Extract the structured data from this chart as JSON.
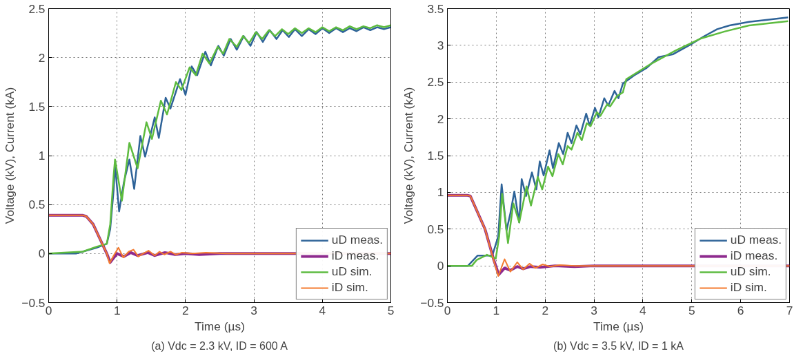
{
  "chart_data": [
    {
      "type": "line",
      "xlabel": "Time (µs)",
      "ylabel": "Voltage (kV), Current (kA)",
      "annotations": [
        "(a) Vdc = 2.3 kV, ID = 600 A"
      ],
      "xlim": [
        0,
        5
      ],
      "ylim": [
        -0.5,
        2.5
      ],
      "xticks": [
        0,
        1,
        2,
        3,
        4,
        5
      ],
      "yticks": [
        {
          "value": -0.5,
          "label": "−0.5"
        },
        0,
        0.5,
        1,
        1.5,
        2,
        2.5
      ],
      "grid": true,
      "legend": "bottom right",
      "line_style": "solid",
      "series": [
        {
          "name": "uD meas.",
          "color": "#2e6398",
          "x": [
            0,
            0.4,
            0.5,
            0.7,
            0.85,
            0.9,
            0.95,
            0.97,
            1.03,
            1.1,
            1.18,
            1.25,
            1.34,
            1.41,
            1.55,
            1.61,
            1.71,
            1.78,
            1.92,
            2.0,
            2.09,
            2.17,
            2.29,
            2.37,
            2.48,
            2.56,
            2.66,
            2.75,
            2.85,
            2.95,
            3.04,
            3.13,
            3.23,
            3.33,
            3.42,
            3.51,
            3.6,
            3.7,
            3.8,
            3.9,
            4.0,
            4.1,
            4.2,
            4.3,
            4.4,
            4.5,
            4.6,
            4.7,
            4.8,
            4.9,
            5.0
          ],
          "values": [
            0,
            0,
            0.02,
            0.06,
            0.1,
            0.25,
            0.65,
            0.91,
            0.43,
            0.73,
            0.96,
            0.66,
            1.2,
            0.99,
            1.39,
            1.18,
            1.59,
            1.48,
            1.78,
            1.62,
            1.91,
            1.82,
            2.06,
            1.92,
            2.12,
            2.02,
            2.19,
            2.08,
            2.22,
            2.12,
            2.26,
            2.16,
            2.28,
            2.19,
            2.28,
            2.21,
            2.29,
            2.22,
            2.29,
            2.24,
            2.3,
            2.25,
            2.3,
            2.26,
            2.3,
            2.27,
            2.31,
            2.28,
            2.31,
            2.29,
            2.31
          ]
        },
        {
          "name": "iD meas.",
          "color": "#8e2a8e",
          "x": [
            0,
            0.5,
            0.55,
            0.65,
            0.75,
            0.85,
            0.9,
            1.0,
            1.1,
            1.2,
            1.3,
            1.45,
            1.55,
            1.7,
            1.85,
            2.0,
            2.2,
            2.5,
            3.0,
            3.5,
            5.0
          ],
          "values": [
            0.39,
            0.39,
            0.38,
            0.3,
            0.15,
            0.0,
            -0.09,
            0.0,
            -0.03,
            0.01,
            -0.02,
            0.01,
            -0.02,
            0.01,
            -0.01,
            0.0,
            -0.01,
            0.0,
            0.0,
            0.0,
            0.0
          ]
        },
        {
          "name": "uD sim.",
          "color": "#5dbb3f",
          "x": [
            0,
            0.5,
            0.7,
            0.85,
            0.9,
            0.95,
            0.97,
            1.07,
            1.18,
            1.3,
            1.43,
            1.51,
            1.64,
            1.73,
            1.86,
            1.94,
            2.06,
            2.15,
            2.25,
            2.35,
            2.47,
            2.55,
            2.64,
            2.75,
            2.84,
            2.93,
            3.03,
            3.12,
            3.22,
            3.31,
            3.41,
            3.5,
            3.6,
            3.7,
            3.8,
            3.9,
            4.0,
            4.1,
            4.2,
            4.3,
            4.4,
            4.5,
            4.6,
            4.7,
            4.8,
            4.9,
            5.0
          ],
          "values": [
            0,
            0.02,
            0.07,
            0.1,
            0.3,
            0.8,
            0.96,
            0.54,
            1.13,
            0.87,
            1.34,
            1.17,
            1.56,
            1.42,
            1.75,
            1.67,
            1.9,
            1.82,
            2.04,
            1.94,
            2.11,
            2.04,
            2.19,
            2.11,
            2.22,
            2.15,
            2.26,
            2.19,
            2.28,
            2.22,
            2.29,
            2.24,
            2.3,
            2.25,
            2.3,
            2.26,
            2.31,
            2.27,
            2.31,
            2.28,
            2.32,
            2.29,
            2.32,
            2.3,
            2.33,
            2.31,
            2.33
          ]
        },
        {
          "name": "iD sim.",
          "color": "#f47b2f",
          "x": [
            0,
            0.5,
            0.55,
            0.65,
            0.75,
            0.85,
            0.89,
            0.95,
            1.02,
            1.09,
            1.17,
            1.24,
            1.31,
            1.38,
            1.46,
            1.55,
            1.62,
            1.69,
            1.78,
            1.86,
            1.95,
            2.1,
            2.3,
            2.6,
            3.0,
            3.5,
            5.0
          ],
          "values": [
            0.39,
            0.39,
            0.38,
            0.3,
            0.15,
            0.0,
            -0.1,
            -0.02,
            0.06,
            -0.04,
            0.02,
            0.04,
            -0.03,
            0.0,
            0.03,
            -0.02,
            0.02,
            -0.01,
            0.02,
            -0.01,
            0.01,
            0.0,
            0.01,
            0.0,
            0.0,
            0.0,
            0.0
          ]
        }
      ]
    },
    {
      "type": "line",
      "xlabel": "Time (µs)",
      "ylabel": "Voltage (kV), Current (kA)",
      "annotations": [
        "(b) Vdc = 3.5 kV, ID = 1 kA"
      ],
      "xlim": [
        0,
        7
      ],
      "ylim": [
        -0.5,
        3.5
      ],
      "xticks": [
        0,
        1,
        2,
        3,
        4,
        5,
        6,
        7
      ],
      "yticks": [
        {
          "value": -0.5,
          "label": "−0.5"
        },
        0,
        0.5,
        1,
        1.5,
        2,
        2.5,
        3,
        3.5
      ],
      "grid": true,
      "legend": "bottom right",
      "line_style": "solid",
      "series": [
        {
          "name": "uD meas.",
          "color": "#2e6398",
          "x": [
            0,
            0.42,
            0.62,
            0.92,
            1.04,
            1.11,
            1.21,
            1.29,
            1.37,
            1.47,
            1.52,
            1.61,
            1.73,
            1.82,
            1.89,
            1.97,
            2.09,
            2.16,
            2.28,
            2.37,
            2.46,
            2.54,
            2.64,
            2.72,
            2.84,
            2.91,
            3.02,
            3.09,
            3.21,
            3.29,
            3.42,
            3.5,
            3.59,
            3.84,
            4.07,
            4.32,
            4.62,
            4.97,
            5.27,
            5.52,
            5.77,
            6.17,
            6.58,
            6.97
          ],
          "values": [
            0,
            0,
            0.14,
            0.14,
            0.4,
            1.11,
            0.48,
            0.72,
            1.01,
            0.59,
            1.18,
            0.95,
            1.27,
            1.04,
            1.42,
            1.23,
            1.57,
            1.33,
            1.67,
            1.52,
            1.81,
            1.67,
            1.91,
            1.79,
            2.07,
            1.91,
            2.15,
            2.02,
            2.28,
            2.18,
            2.38,
            2.28,
            2.48,
            2.6,
            2.69,
            2.84,
            2.88,
            3.01,
            3.13,
            3.22,
            3.27,
            3.32,
            3.35,
            3.38
          ]
        },
        {
          "name": "iD meas.",
          "color": "#8e2a8e",
          "x": [
            0,
            0.4,
            0.47,
            0.77,
            0.95,
            1.05,
            1.17,
            1.29,
            1.43,
            1.55,
            1.7,
            1.9,
            2.2,
            2.6,
            3.0,
            4.0,
            5.0,
            7.0
          ],
          "values": [
            0.96,
            0.96,
            0.95,
            0.5,
            0.08,
            -0.12,
            -0.03,
            -0.06,
            -0.01,
            -0.04,
            -0.01,
            -0.02,
            0.0,
            -0.01,
            0.0,
            0.0,
            0.0,
            0.0
          ]
        },
        {
          "name": "uD sim.",
          "color": "#5dbb3f",
          "x": [
            0,
            0.5,
            0.6,
            0.81,
            0.99,
            1.06,
            1.12,
            1.24,
            1.35,
            1.47,
            1.62,
            1.71,
            1.85,
            1.94,
            2.06,
            2.15,
            2.27,
            2.36,
            2.46,
            2.54,
            2.66,
            2.75,
            2.85,
            2.93,
            3.06,
            3.13,
            3.27,
            3.33,
            3.47,
            3.59,
            3.66,
            4.17,
            4.67,
            5.17,
            5.68,
            6.17,
            6.97
          ],
          "values": [
            0,
            0,
            0.08,
            0.15,
            0.1,
            0.4,
            0.98,
            0.31,
            0.85,
            0.59,
            1.08,
            0.82,
            1.21,
            1.04,
            1.35,
            1.22,
            1.52,
            1.38,
            1.63,
            1.58,
            1.81,
            1.71,
            1.94,
            1.9,
            2.09,
            2.04,
            2.2,
            2.17,
            2.31,
            2.36,
            2.54,
            2.75,
            2.93,
            3.09,
            3.19,
            3.27,
            3.33
          ]
        },
        {
          "name": "iD sim.",
          "color": "#f47b2f",
          "x": [
            0,
            0.4,
            0.47,
            0.77,
            0.95,
            1.04,
            1.17,
            1.29,
            1.43,
            1.55,
            1.68,
            1.8,
            1.95,
            2.1,
            2.3,
            2.6,
            3.0,
            4.0,
            5.0,
            7.0
          ],
          "values": [
            0.96,
            0.96,
            0.95,
            0.5,
            0.07,
            -0.14,
            0.09,
            -0.08,
            0.05,
            -0.05,
            0.03,
            -0.03,
            0.02,
            -0.01,
            0.01,
            0.0,
            0.0,
            0.0,
            0.0,
            0.0
          ]
        }
      ]
    }
  ]
}
